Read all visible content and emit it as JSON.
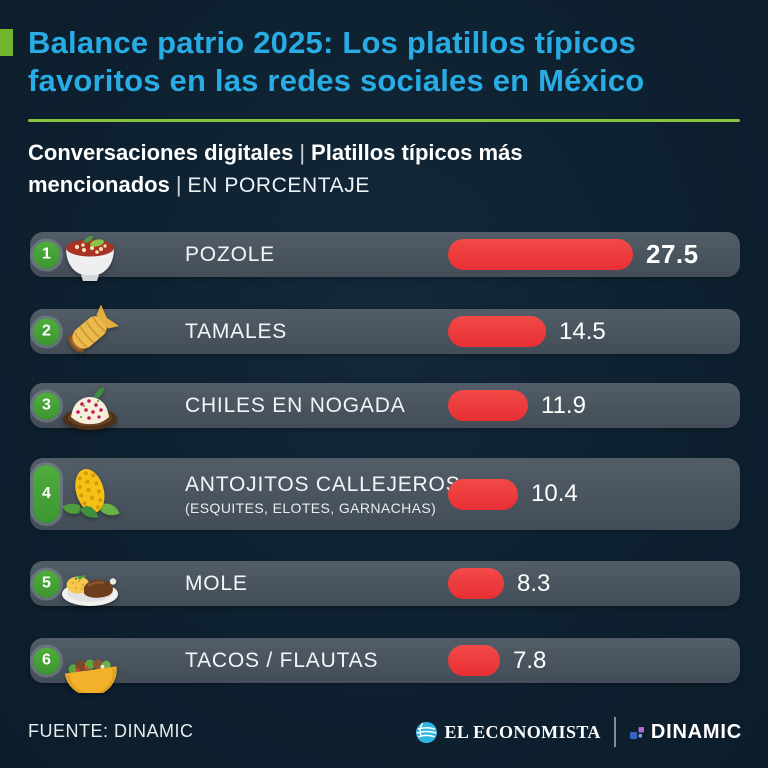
{
  "header": {
    "title_line1": "Balance patrio 2025: Los platillos típicos",
    "title_line2": "favoritos en las redes sociales en México",
    "subtitle_bold1": "Conversaciones digitales",
    "subtitle_sep1": "|",
    "subtitle_bold2": "Platillos típicos más mencionados",
    "subtitle_sep2": "|",
    "subtitle_light": "EN PORCENTAJE"
  },
  "rows": [
    {
      "rank": "1",
      "label": "POZOLE",
      "value": "27.5",
      "icon": "pozole-bowl-icon"
    },
    {
      "rank": "2",
      "label": "TAMALES",
      "value": "14.5",
      "icon": "tamal-icon"
    },
    {
      "rank": "3",
      "label": "CHILES EN NOGADA",
      "value": "11.9",
      "icon": "chile-en-nogada-icon"
    },
    {
      "rank": "4",
      "label": "ANTOJITOS CALLEJEROS",
      "sublabel": "(ESQUITES, ELOTES, GARNACHAS)",
      "value": "10.4",
      "icon": "corn-icon"
    },
    {
      "rank": "5",
      "label": "MOLE",
      "value": "8.3",
      "icon": "mole-plate-icon"
    },
    {
      "rank": "6",
      "label": "TACOS / FLAUTAS",
      "value": "7.8",
      "icon": "taco-icon"
    }
  ],
  "chart_data": {
    "type": "bar",
    "orientation": "horizontal",
    "title": "Balance patrio 2025: Los platillos típicos favoritos en las redes sociales en México",
    "subtitle": "Conversaciones digitales | Platillos típicos más mencionados | EN PORCENTAJE",
    "categories": [
      "POZOLE",
      "TAMALES",
      "CHILES EN NOGADA",
      "ANTOJITOS CALLEJEROS (ESQUITES, ELOTES, GARNACHAS)",
      "MOLE",
      "TACOS / FLAUTAS"
    ],
    "values": [
      27.5,
      14.5,
      11.9,
      10.4,
      8.3,
      7.8
    ],
    "unit": "%",
    "xlim": [
      0,
      30
    ],
    "bar_color": "#ee393e",
    "grid": false,
    "legend": false
  },
  "colors": {
    "background": "#0e2130",
    "title_cyan": "#29ace4",
    "accent_green": "#6fb52d",
    "divider_green": "#86c440",
    "row_pill": "#4a5560",
    "badge_green": "#44a437",
    "bar_red": "#ee393e"
  },
  "footer": {
    "source": "FUENTE: DINAMIC",
    "brand_economista": "EL ECONOMISTA",
    "brand_dinamic": "DINAMIC"
  }
}
